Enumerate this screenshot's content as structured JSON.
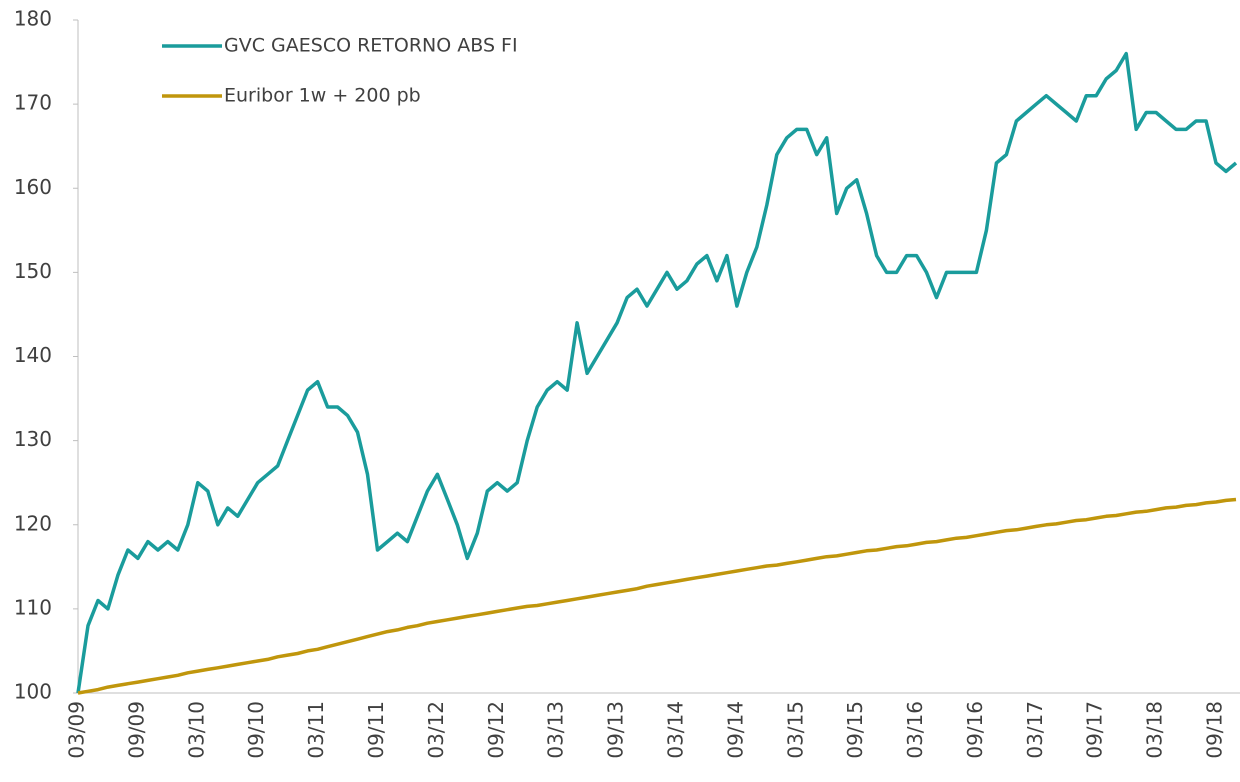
{
  "chart_data": {
    "type": "line",
    "categories": [
      "03/09",
      null,
      null,
      null,
      null,
      null,
      "09/09",
      null,
      null,
      null,
      null,
      null,
      "03/10",
      null,
      null,
      null,
      null,
      null,
      "09/10",
      null,
      null,
      null,
      null,
      null,
      "03/11",
      null,
      null,
      null,
      null,
      null,
      "09/11",
      null,
      null,
      null,
      null,
      null,
      "03/12",
      null,
      null,
      null,
      null,
      null,
      "09/12",
      null,
      null,
      null,
      null,
      null,
      "03/13",
      null,
      null,
      null,
      null,
      null,
      "09/13",
      null,
      null,
      null,
      null,
      null,
      "03/14",
      null,
      null,
      null,
      null,
      null,
      "09/14",
      null,
      null,
      null,
      null,
      null,
      "03/15",
      null,
      null,
      null,
      null,
      null,
      "09/15",
      null,
      null,
      null,
      null,
      null,
      "03/16",
      null,
      null,
      null,
      null,
      null,
      "09/16",
      null,
      null,
      null,
      null,
      null,
      "03/17",
      null,
      null,
      null,
      null,
      null,
      "09/17",
      null,
      null,
      null,
      null,
      null,
      "03/18",
      null,
      null,
      null,
      null,
      null,
      "09/18",
      null,
      null
    ],
    "series": [
      {
        "name": "GVC GAESCO RETORNO ABS FI",
        "color": "#1a9c9c",
        "values": [
          100,
          108,
          111,
          110,
          114,
          117,
          116,
          118,
          117,
          118,
          117,
          120,
          125,
          124,
          120,
          122,
          121,
          123,
          125,
          126,
          127,
          130,
          133,
          136,
          137,
          134,
          134,
          133,
          131,
          126,
          117,
          118,
          119,
          118,
          121,
          124,
          126,
          123,
          120,
          116,
          119,
          124,
          125,
          124,
          125,
          130,
          134,
          136,
          137,
          136,
          144,
          138,
          140,
          142,
          144,
          147,
          148,
          146,
          148,
          150,
          148,
          149,
          151,
          152,
          149,
          152,
          146,
          150,
          153,
          158,
          164,
          166,
          167,
          167,
          164,
          166,
          157,
          160,
          161,
          157,
          152,
          150,
          150,
          152,
          152,
          150,
          147,
          150,
          150,
          150,
          150,
          155,
          163,
          164,
          168,
          169,
          170,
          171,
          170,
          169,
          168,
          171,
          171,
          173,
          174,
          176,
          167,
          169,
          169,
          168,
          167,
          167,
          168,
          168,
          163,
          162,
          163
        ]
      },
      {
        "name": "Euribor 1w + 200 pb",
        "color": "#c0960c",
        "values": [
          100,
          100.2,
          100.4,
          100.7,
          100.9,
          101.1,
          101.3,
          101.5,
          101.7,
          101.9,
          102.1,
          102.4,
          102.6,
          102.8,
          103.0,
          103.2,
          103.4,
          103.6,
          103.8,
          104.0,
          104.3,
          104.5,
          104.7,
          105.0,
          105.2,
          105.5,
          105.8,
          106.1,
          106.4,
          106.7,
          107.0,
          107.3,
          107.5,
          107.8,
          108.0,
          108.3,
          108.5,
          108.7,
          108.9,
          109.1,
          109.3,
          109.5,
          109.7,
          109.9,
          110.1,
          110.3,
          110.4,
          110.6,
          110.8,
          111.0,
          111.2,
          111.4,
          111.6,
          111.8,
          112.0,
          112.2,
          112.4,
          112.7,
          112.9,
          113.1,
          113.3,
          113.5,
          113.7,
          113.9,
          114.1,
          114.3,
          114.5,
          114.7,
          114.9,
          115.1,
          115.2,
          115.4,
          115.6,
          115.8,
          116.0,
          116.2,
          116.3,
          116.5,
          116.7,
          116.9,
          117.0,
          117.2,
          117.4,
          117.5,
          117.7,
          117.9,
          118.0,
          118.2,
          118.4,
          118.5,
          118.7,
          118.9,
          119.1,
          119.3,
          119.4,
          119.6,
          119.8,
          120.0,
          120.1,
          120.3,
          120.5,
          120.6,
          120.8,
          121.0,
          121.1,
          121.3,
          121.5,
          121.6,
          121.8,
          122.0,
          122.1,
          122.3,
          122.4,
          122.6,
          122.7,
          122.9,
          123.0
        ]
      }
    ],
    "ylim": [
      100,
      180
    ],
    "yticks": [
      100,
      110,
      120,
      130,
      140,
      150,
      160,
      170,
      180
    ],
    "grid": false,
    "legend": "top-left"
  }
}
